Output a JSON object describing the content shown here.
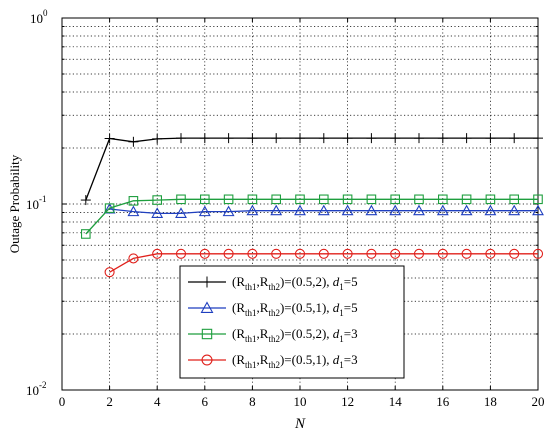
{
  "chart_data": {
    "type": "line",
    "title": "",
    "xlabel": "N",
    "ylabel": "Outage Probability",
    "xlim": [
      0,
      20
    ],
    "ylim": [
      0.01,
      1
    ],
    "yscale": "log",
    "grid": true,
    "legend_position": "lower-center",
    "x_ticks": [
      "0",
      "2",
      "4",
      "6",
      "8",
      "10",
      "12",
      "14",
      "16",
      "18",
      "20"
    ],
    "y_ticks": [
      {
        "base": "10",
        "exp": "0",
        "value": 1
      },
      {
        "base": "10",
        "exp": "-1",
        "value": 0.1
      },
      {
        "base": "10",
        "exp": "-2",
        "value": 0.01
      }
    ],
    "series": [
      {
        "label_parts": {
          "r1": "th1",
          "r2": "th2",
          "pair": "=(0.5,2),",
          "d": "1",
          "dval": "=5"
        },
        "color": "#000000",
        "marker": "plus",
        "x": [
          1,
          2,
          3,
          4,
          5,
          6,
          7,
          8,
          9,
          10,
          11,
          12,
          13,
          14,
          15,
          16,
          17,
          18,
          19,
          20
        ],
        "y": [
          0.105,
          0.225,
          0.216,
          0.224,
          0.226,
          0.226,
          0.226,
          0.226,
          0.226,
          0.226,
          0.226,
          0.226,
          0.226,
          0.226,
          0.226,
          0.226,
          0.226,
          0.226,
          0.226,
          0.226
        ]
      },
      {
        "label_parts": {
          "r1": "th1",
          "r2": "th2",
          "pair": "=(0.5,1),",
          "d": "1",
          "dval": "=5"
        },
        "color": "#1f3fbf",
        "marker": "triangle",
        "x": [
          2,
          3,
          4,
          5,
          6,
          7,
          8,
          9,
          10,
          11,
          12,
          13,
          14,
          15,
          16,
          17,
          18,
          19,
          20
        ],
        "y": [
          0.094,
          0.091,
          0.089,
          0.089,
          0.091,
          0.091,
          0.092,
          0.092,
          0.092,
          0.092,
          0.092,
          0.092,
          0.092,
          0.092,
          0.092,
          0.092,
          0.092,
          0.092,
          0.092
        ]
      },
      {
        "label_parts": {
          "r1": "th1",
          "r2": "th2",
          "pair": "=(0.5,2),",
          "d": "1",
          "dval": "=3"
        },
        "color": "#1e9e3e",
        "marker": "square",
        "x": [
          1,
          2,
          3,
          4,
          5,
          6,
          7,
          8,
          9,
          10,
          11,
          12,
          13,
          14,
          15,
          16,
          17,
          18,
          19,
          20
        ],
        "y": [
          0.069,
          0.095,
          0.104,
          0.105,
          0.106,
          0.106,
          0.106,
          0.106,
          0.106,
          0.106,
          0.106,
          0.106,
          0.106,
          0.106,
          0.106,
          0.106,
          0.106,
          0.106,
          0.106,
          0.106
        ]
      },
      {
        "label_parts": {
          "r1": "th1",
          "r2": "th2",
          "pair": "=(0.5,1),",
          "d": "1",
          "dval": "=3"
        },
        "color": "#e0201b",
        "marker": "circle",
        "x": [
          2,
          3,
          4,
          5,
          6,
          7,
          8,
          9,
          10,
          11,
          12,
          13,
          14,
          15,
          16,
          17,
          18,
          19,
          20
        ],
        "y": [
          0.043,
          0.051,
          0.054,
          0.054,
          0.054,
          0.054,
          0.054,
          0.054,
          0.054,
          0.054,
          0.054,
          0.054,
          0.054,
          0.054,
          0.054,
          0.054,
          0.054,
          0.054,
          0.054
        ]
      }
    ]
  }
}
